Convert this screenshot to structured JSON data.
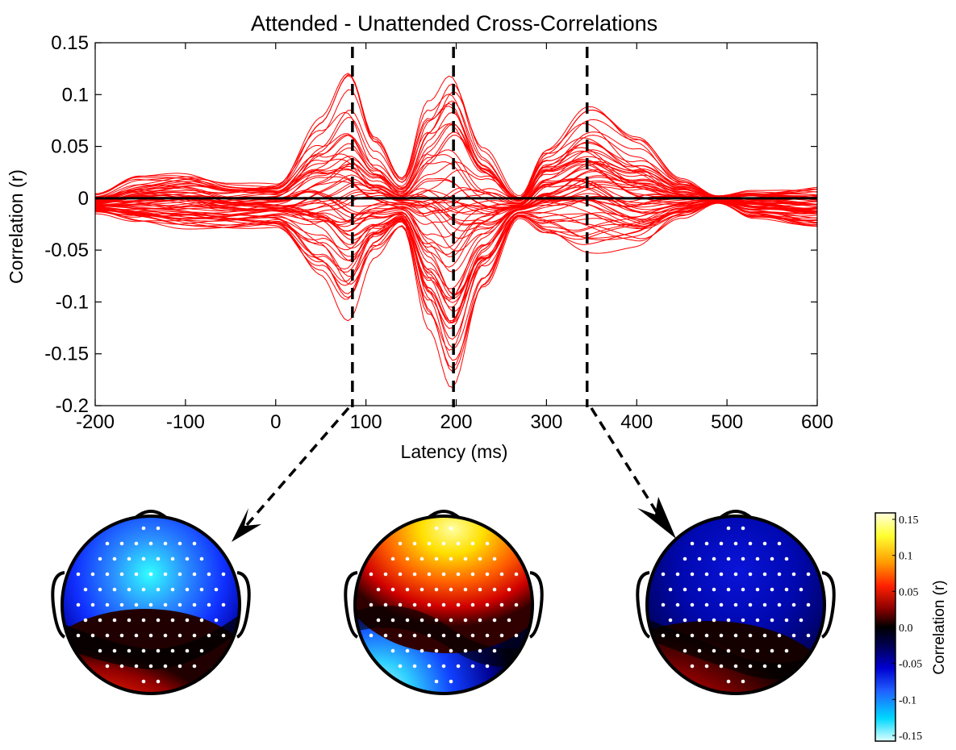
{
  "chart_data": {
    "type": "line",
    "title": "Attended - Unattended Cross-Correlations",
    "xlabel": "Latency (ms)",
    "ylabel": "Correlation (r)",
    "xlim": [
      -200,
      600
    ],
    "ylim": [
      -0.2,
      0.15
    ],
    "xticks": [
      -200,
      -100,
      0,
      100,
      200,
      300,
      400,
      500,
      600
    ],
    "xtick_labels": [
      "-200",
      "-100",
      "0",
      "100",
      "200",
      "300",
      "400",
      "500",
      "600"
    ],
    "yticks": [
      0.15,
      0.1,
      0.05,
      0,
      -0.05,
      -0.1,
      -0.15,
      -0.2
    ],
    "ytick_labels": [
      "0.15",
      "0.1",
      "0.05",
      "0",
      "-0.05",
      "-0.1",
      "-0.15",
      "-0.2"
    ],
    "line_color": "#ff0000",
    "n_traces": 64,
    "envelope": {
      "x": [
        -200,
        -150,
        -100,
        -50,
        0,
        50,
        80,
        110,
        140,
        170,
        195,
        230,
        270,
        300,
        345,
        400,
        450,
        490,
        530,
        600
      ],
      "upper": [
        0.005,
        0.022,
        0.026,
        0.018,
        0.02,
        0.09,
        0.13,
        0.06,
        0.02,
        0.1,
        0.138,
        0.06,
        0.005,
        0.06,
        0.096,
        0.06,
        0.02,
        0.003,
        0.01,
        0.015
      ],
      "lower": [
        -0.015,
        -0.025,
        -0.03,
        -0.03,
        -0.03,
        -0.08,
        -0.12,
        -0.06,
        -0.03,
        -0.13,
        -0.185,
        -0.09,
        -0.02,
        -0.04,
        -0.055,
        -0.05,
        -0.02,
        -0.005,
        -0.02,
        -0.03
      ]
    },
    "reference_lines": [
      {
        "latency": 85
      },
      {
        "latency": 197
      },
      {
        "latency": 345
      }
    ],
    "grid": false
  },
  "topomaps": {
    "colorbar": {
      "label": "Correlation (r)",
      "ticks": [
        0.15,
        0.1,
        0.05,
        0.0,
        -0.05,
        -0.1,
        -0.15
      ],
      "tick_labels": [
        "0.15",
        "0.1",
        "0.05",
        "0.0",
        "-0.05",
        "-0.1",
        "-0.15"
      ],
      "colors": [
        "#ffffe0",
        "#ffff30",
        "#ff9900",
        "#ff2000",
        "#8a0000",
        "#000000",
        "#000050",
        "#0000d0",
        "#2060ff",
        "#00d8ff",
        "#e0ffff"
      ]
    },
    "maps": [
      {
        "latency": 85,
        "frontal": "light blue",
        "posterior": "red-yellow"
      },
      {
        "latency": 197,
        "frontal": "yellow",
        "posterior": "light blue"
      },
      {
        "latency": 345,
        "frontal": "dark blue",
        "posterior": "red"
      }
    ]
  }
}
